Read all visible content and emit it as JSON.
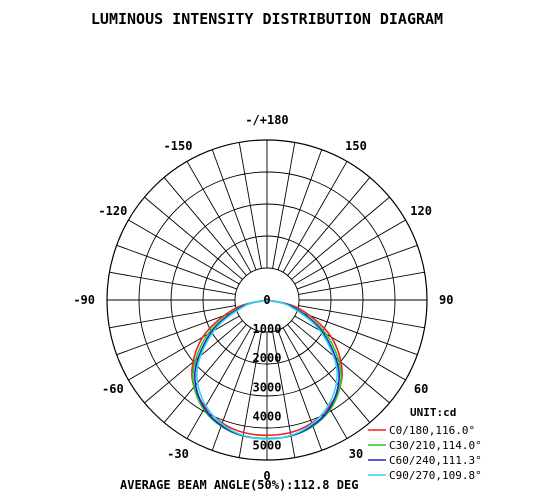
{
  "chart_data": {
    "type": "polar",
    "title": "LUMINOUS INTENSITY DISTRIBUTION DIAGRAM",
    "angle_labels": [
      {
        "angle": 180,
        "label": "-/+180"
      },
      {
        "angle": -150,
        "label": "-150"
      },
      {
        "angle": 150,
        "label": "150"
      },
      {
        "angle": -120,
        "label": "-120"
      },
      {
        "angle": 120,
        "label": "120"
      },
      {
        "angle": -90,
        "label": "-90"
      },
      {
        "angle": 90,
        "label": "90"
      },
      {
        "angle": -60,
        "label": "-60"
      },
      {
        "angle": 60,
        "label": "60"
      },
      {
        "angle": -30,
        "label": "-30"
      },
      {
        "angle": 30,
        "label": "30"
      },
      {
        "angle": 0,
        "label": "0"
      }
    ],
    "radial_ticks": [
      0,
      1000,
      2000,
      3000,
      4000,
      5000
    ],
    "radial_tick_labels": [
      "0",
      "1000",
      "2000",
      "3000",
      "4000",
      "5000"
    ],
    "rmax": 5500,
    "unit_label": "UNIT:cd",
    "footer": "AVERAGE BEAM ANGLE(50%):112.8 DEG",
    "grid": true,
    "legend_position": "bottom-right",
    "series": [
      {
        "name": "C0/180,116.0°",
        "color": "#ee2222",
        "angles": [
          -90,
          -75,
          -60,
          -45,
          -30,
          -15,
          0,
          15,
          30,
          45,
          60,
          75,
          90
        ],
        "values": [
          0,
          1150,
          2550,
          3650,
          4250,
          4580,
          4650,
          4580,
          4250,
          3650,
          2550,
          1150,
          0
        ]
      },
      {
        "name": "C30/210,114.0°",
        "color": "#22cc22",
        "angles": [
          -90,
          -75,
          -60,
          -45,
          -30,
          -15,
          0,
          15,
          30,
          45,
          60,
          75,
          90
        ],
        "values": [
          0,
          950,
          2350,
          3600,
          4350,
          4700,
          4760,
          4700,
          4350,
          3600,
          2350,
          950,
          0
        ]
      },
      {
        "name": "C60/240,111.3°",
        "color": "#2222cc",
        "angles": [
          -90,
          -75,
          -60,
          -45,
          -30,
          -15,
          0,
          15,
          30,
          45,
          60,
          75,
          90
        ],
        "values": [
          0,
          900,
          2200,
          3500,
          4300,
          4680,
          4770,
          4680,
          4300,
          3500,
          2200,
          900,
          0
        ]
      },
      {
        "name": "C90/270,109.8°",
        "color": "#33d6f0",
        "angles": [
          -90,
          -75,
          -60,
          -45,
          -30,
          -15,
          0,
          15,
          30,
          45,
          60,
          75,
          90
        ],
        "values": [
          0,
          800,
          2100,
          3400,
          4200,
          4650,
          4780,
          4650,
          4200,
          3400,
          2100,
          800,
          0
        ]
      }
    ]
  }
}
